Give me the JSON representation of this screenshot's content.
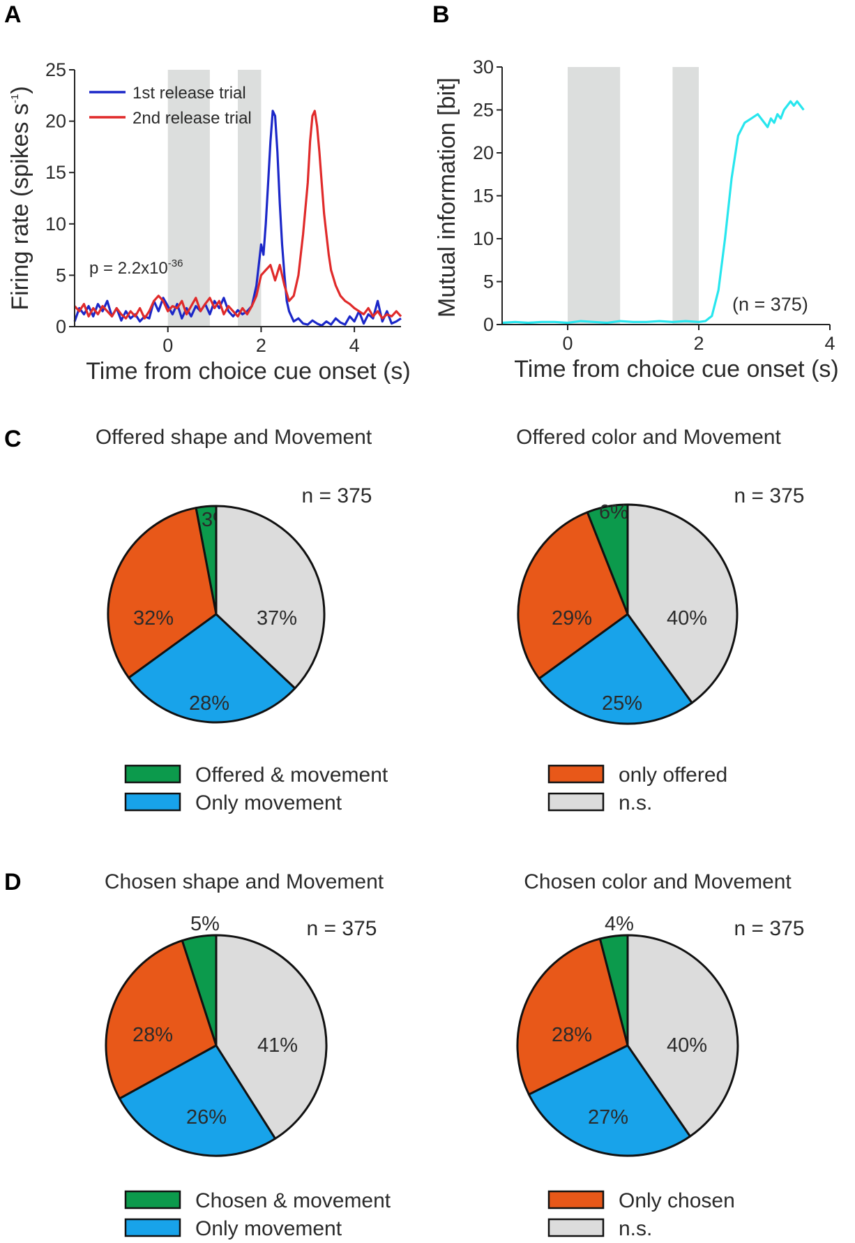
{
  "colors": {
    "shade": "#dcdedd",
    "blue_trace": "#1b27c8",
    "red_trace": "#e02a2a",
    "cyan_trace": "#27e6ee",
    "green": "#0c9a4c",
    "orange": "#e85819",
    "light_blue": "#18a3ea",
    "gray": "#dcdcdc"
  },
  "chart_data": [
    {
      "panel": "A",
      "type": "line",
      "xlabel": "Time from choice cue onset (s)",
      "ylabel_main": "Firing rate (spikes s",
      "ylabel_sup": "-1",
      "ylabel_close": ")",
      "xlim": [
        -2,
        5
      ],
      "ylim": [
        0,
        25
      ],
      "xticks": [
        0,
        2,
        4
      ],
      "yticks": [
        0,
        5,
        10,
        15,
        20,
        25
      ],
      "shaded_intervals": [
        [
          0,
          0.9
        ],
        [
          1.5,
          2.0
        ]
      ],
      "annotation_main": "p = 2.2x10",
      "annotation_sup": "-36",
      "series": [
        {
          "name": "1st release trial",
          "color": "#1b27c8",
          "x": [
            -2.0,
            -1.9,
            -1.8,
            -1.7,
            -1.6,
            -1.5,
            -1.4,
            -1.3,
            -1.2,
            -1.1,
            -1.0,
            -0.9,
            -0.8,
            -0.7,
            -0.6,
            -0.5,
            -0.4,
            -0.3,
            -0.2,
            -0.1,
            0.0,
            0.1,
            0.2,
            0.3,
            0.4,
            0.5,
            0.6,
            0.7,
            0.8,
            0.9,
            1.0,
            1.1,
            1.2,
            1.3,
            1.4,
            1.5,
            1.6,
            1.7,
            1.8,
            1.9,
            2.0,
            2.05,
            2.1,
            2.15,
            2.2,
            2.25,
            2.3,
            2.35,
            2.4,
            2.45,
            2.5,
            2.55,
            2.6,
            2.7,
            2.8,
            2.9,
            3.0,
            3.1,
            3.2,
            3.3,
            3.4,
            3.5,
            3.6,
            3.7,
            3.8,
            3.9,
            4.0,
            4.1,
            4.2,
            4.3,
            4.4,
            4.5,
            4.6,
            4.7,
            4.8,
            4.9,
            5.0
          ],
          "y": [
            0.5,
            1.8,
            1.2,
            2.0,
            1.0,
            2.2,
            1.5,
            2.5,
            1.0,
            1.8,
            0.6,
            1.5,
            0.8,
            1.2,
            0.5,
            1.0,
            0.8,
            2.5,
            1.5,
            2.8,
            2.0,
            1.2,
            2.2,
            0.8,
            1.8,
            1.0,
            2.0,
            1.5,
            2.2,
            1.2,
            2.5,
            1.8,
            2.8,
            1.5,
            1.0,
            1.6,
            1.2,
            1.5,
            2.0,
            4.0,
            8.0,
            7.0,
            10.0,
            14.0,
            18.0,
            21.0,
            20.5,
            17.0,
            12.0,
            8.0,
            5.0,
            2.5,
            1.5,
            0.5,
            0.8,
            0.3,
            0.2,
            0.6,
            0.3,
            0.1,
            0.5,
            0.2,
            0.8,
            0.4,
            0.2,
            1.0,
            0.5,
            1.5,
            0.3,
            1.2,
            0.8,
            2.5,
            0.5,
            1.5,
            0.3,
            0.5,
            0.8
          ]
        },
        {
          "name": "2nd release trial",
          "color": "#e02a2a",
          "x": [
            -2.0,
            -1.9,
            -1.8,
            -1.7,
            -1.6,
            -1.5,
            -1.4,
            -1.3,
            -1.2,
            -1.1,
            -1.0,
            -0.9,
            -0.8,
            -0.7,
            -0.6,
            -0.5,
            -0.4,
            -0.3,
            -0.2,
            -0.1,
            0.0,
            0.1,
            0.2,
            0.3,
            0.4,
            0.5,
            0.6,
            0.7,
            0.8,
            0.9,
            1.0,
            1.1,
            1.2,
            1.3,
            1.4,
            1.5,
            1.6,
            1.7,
            1.8,
            1.9,
            2.0,
            2.1,
            2.2,
            2.3,
            2.4,
            2.5,
            2.6,
            2.7,
            2.8,
            2.9,
            3.0,
            3.05,
            3.1,
            3.15,
            3.2,
            3.25,
            3.3,
            3.35,
            3.4,
            3.45,
            3.5,
            3.6,
            3.7,
            3.8,
            3.9,
            4.0,
            4.1,
            4.2,
            4.3,
            4.4,
            4.5,
            4.6,
            4.7,
            4.8,
            4.9,
            5.0
          ],
          "y": [
            2.0,
            1.5,
            2.2,
            1.0,
            1.8,
            1.2,
            2.0,
            1.5,
            1.0,
            1.8,
            1.2,
            0.8,
            1.5,
            1.0,
            1.8,
            0.8,
            1.5,
            2.5,
            3.0,
            2.5,
            1.5,
            2.0,
            1.8,
            2.5,
            1.2,
            2.0,
            2.8,
            1.5,
            2.2,
            2.8,
            1.8,
            2.5,
            1.2,
            2.0,
            1.5,
            1.0,
            1.8,
            1.2,
            2.0,
            3.0,
            5.0,
            5.5,
            6.0,
            4.5,
            6.0,
            4.0,
            2.5,
            3.0,
            5.0,
            9.0,
            14.0,
            18.0,
            20.5,
            21.0,
            19.5,
            17.0,
            14.0,
            11.0,
            9.0,
            7.0,
            5.5,
            4.0,
            3.0,
            2.5,
            2.2,
            1.8,
            1.5,
            1.2,
            1.8,
            1.0,
            1.5,
            0.8,
            1.2,
            1.0,
            1.5,
            1.0
          ]
        }
      ]
    },
    {
      "panel": "B",
      "type": "line",
      "xlabel": "Time from choice cue onset (s)",
      "ylabel": "Mutual information [bit]",
      "xlim": [
        -1,
        4
      ],
      "ylim": [
        0,
        30
      ],
      "xticks": [
        0,
        2,
        4
      ],
      "yticks": [
        0,
        5,
        10,
        15,
        20,
        25,
        30
      ],
      "shaded_intervals": [
        [
          0,
          0.8
        ],
        [
          1.6,
          2.0
        ]
      ],
      "annotation": "(n = 375)",
      "series": [
        {
          "name": "Mutual information",
          "color": "#27e6ee",
          "x": [
            -1.0,
            -0.8,
            -0.6,
            -0.4,
            -0.2,
            0.0,
            0.2,
            0.4,
            0.6,
            0.8,
            1.0,
            1.2,
            1.4,
            1.6,
            1.8,
            2.0,
            2.1,
            2.2,
            2.3,
            2.4,
            2.5,
            2.6,
            2.7,
            2.8,
            2.9,
            3.0,
            3.05,
            3.1,
            3.15,
            3.2,
            3.25,
            3.3,
            3.35,
            3.4,
            3.45,
            3.5,
            3.55,
            3.6
          ],
          "y": [
            0.2,
            0.3,
            0.2,
            0.3,
            0.3,
            0.2,
            0.4,
            0.3,
            0.2,
            0.4,
            0.3,
            0.3,
            0.4,
            0.3,
            0.4,
            0.3,
            0.4,
            1.0,
            4.0,
            10.0,
            17.0,
            22.0,
            23.5,
            24.0,
            24.5,
            23.5,
            23.0,
            24.0,
            23.5,
            24.5,
            24.0,
            25.0,
            25.5,
            26.0,
            25.5,
            26.0,
            25.5,
            25.0
          ]
        }
      ]
    },
    {
      "panel": "C",
      "type": "pie",
      "title": "Offered shape and Movement",
      "n_label": "n = 375",
      "slices": [
        {
          "label": "Offered & movement",
          "value": 3,
          "color": "#0c9a4c",
          "text": "3%"
        },
        {
          "label": "only offered",
          "value": 32,
          "color": "#e85819",
          "text": "32%"
        },
        {
          "label": "Only movement",
          "value": 28,
          "color": "#18a3ea",
          "text": "28%"
        },
        {
          "label": "n.s.",
          "value": 37,
          "color": "#dcdcdc",
          "text": "37%"
        }
      ]
    },
    {
      "panel": "C",
      "type": "pie",
      "title": "Offered color and Movement",
      "n_label": "n = 375",
      "slices": [
        {
          "label": "Offered & movement",
          "value": 6,
          "color": "#0c9a4c",
          "text": "6%"
        },
        {
          "label": "only offered",
          "value": 29,
          "color": "#e85819",
          "text": "29%"
        },
        {
          "label": "Only movement",
          "value": 25,
          "color": "#18a3ea",
          "text": "25%"
        },
        {
          "label": "n.s.",
          "value": 40,
          "color": "#dcdcdc",
          "text": "40%"
        }
      ]
    },
    {
      "panel": "D",
      "type": "pie",
      "title": "Chosen shape and Movement",
      "n_label": "n = 375",
      "slices": [
        {
          "label": "Chosen & movement",
          "value": 5,
          "color": "#0c9a4c",
          "text": "5%"
        },
        {
          "label": "Only chosen",
          "value": 28,
          "color": "#e85819",
          "text": "28%"
        },
        {
          "label": "Only movement",
          "value": 26,
          "color": "#18a3ea",
          "text": "26%"
        },
        {
          "label": "n.s.",
          "value": 41,
          "color": "#dcdcdc",
          "text": "41%"
        }
      ]
    },
    {
      "panel": "D",
      "type": "pie",
      "title": "Chosen color and Movement",
      "n_label": "n = 375",
      "slices": [
        {
          "label": "Chosen & movement",
          "value": 4,
          "color": "#0c9a4c",
          "text": "4%"
        },
        {
          "label": "Only chosen",
          "value": 28,
          "color": "#e85819",
          "text": "28%"
        },
        {
          "label": "Only movement",
          "value": 27,
          "color": "#18a3ea",
          "text": "27%"
        },
        {
          "label": "n.s.",
          "value": 40,
          "color": "#dcdcdc",
          "text": "40%"
        }
      ]
    }
  ],
  "panels": {
    "A": "A",
    "B": "B",
    "C": "C",
    "D": "D"
  },
  "legends": {
    "C": [
      {
        "label": "Offered & movement",
        "color": "#0c9a4c"
      },
      {
        "label": "Only movement",
        "color": "#18a3ea"
      },
      {
        "label": "only offered",
        "color": "#e85819"
      },
      {
        "label": "n.s.",
        "color": "#dcdcdc"
      }
    ],
    "D": [
      {
        "label": "Chosen & movement",
        "color": "#0c9a4c"
      },
      {
        "label": "Only movement",
        "color": "#18a3ea"
      },
      {
        "label": "Only chosen",
        "color": "#e85819"
      },
      {
        "label": "n.s.",
        "color": "#dcdcdc"
      }
    ]
  }
}
